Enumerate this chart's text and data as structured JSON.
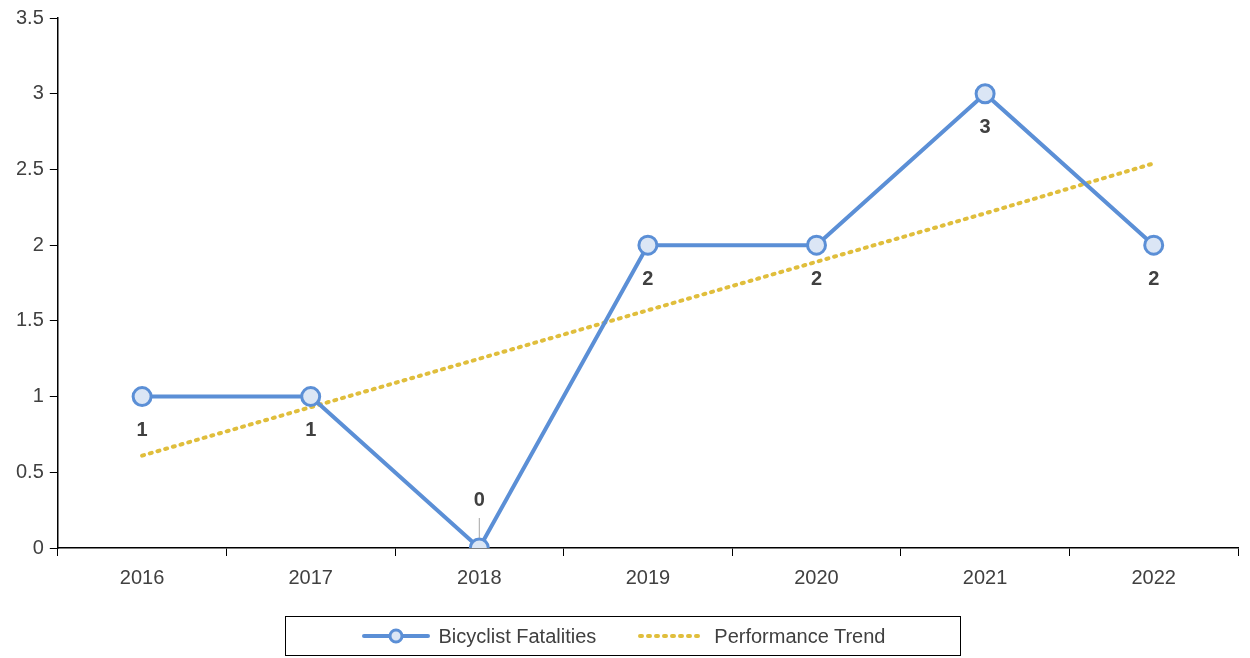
{
  "chart_data": {
    "type": "line",
    "categories": [
      "2016",
      "2017",
      "2018",
      "2019",
      "2020",
      "2021",
      "2022"
    ],
    "series": [
      {
        "name": "Bicyclist Fatalities",
        "color": "#5b8fd6",
        "values": [
          1,
          1,
          0,
          2,
          2,
          3,
          2
        ],
        "marker": "circle",
        "line_style": "solid",
        "value_labels": [
          "1",
          "1",
          "0",
          "2",
          "2",
          "3",
          "2"
        ]
      },
      {
        "name": "Performance Trend",
        "type": "line",
        "color": "#e0be3c",
        "values": [
          0.61,
          0.93,
          1.25,
          1.57,
          1.89,
          2.21,
          2.54
        ],
        "marker": "none",
        "line_style": "dotted"
      }
    ],
    "ylim": [
      0,
      3.5
    ],
    "yticks": [
      0,
      0.5,
      1,
      1.5,
      2,
      2.5,
      3,
      3.5
    ],
    "grid": false,
    "legend": "bottom"
  }
}
